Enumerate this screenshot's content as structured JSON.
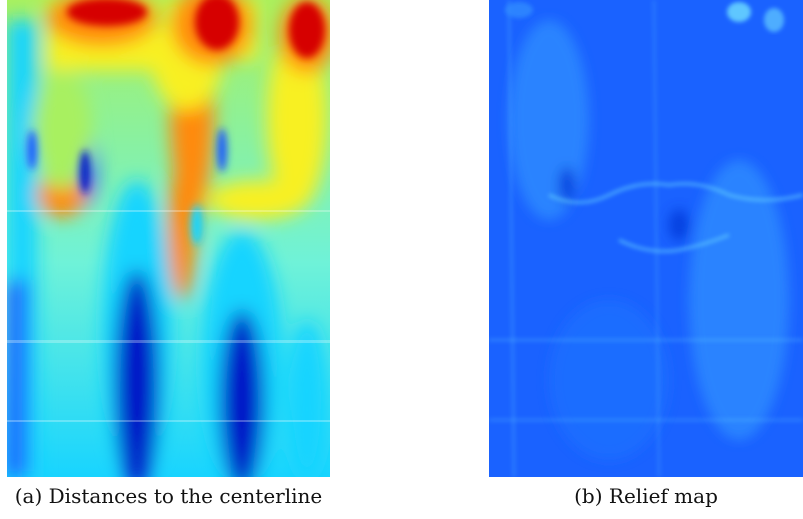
{
  "figure": {
    "panels": [
      {
        "id": "a",
        "caption": "(a) Distances to the centerline",
        "colormap": "jet",
        "palette": {
          "deep_blue": "#0018c8",
          "blue": "#1e5cff",
          "cyan": "#18d4ff",
          "aqua": "#6ff2d8",
          "green": "#a8f060",
          "yellow": "#f8f020",
          "orange": "#ff8a10",
          "red": "#d60000"
        }
      },
      {
        "id": "b",
        "caption": "(b) Relief map",
        "colormap": "jet",
        "palette": {
          "base_blue": "#1a62ff",
          "bright_blue": "#2e8cff",
          "cyan_highlight": "#6fe0ff",
          "dark_blue": "#0038d8"
        }
      }
    ]
  }
}
